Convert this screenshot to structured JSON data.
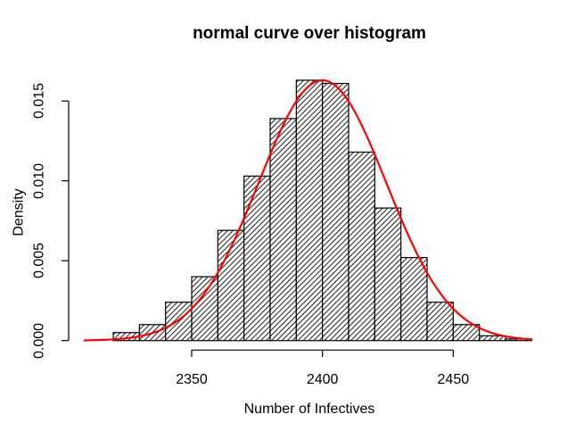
{
  "chart_data": {
    "type": "histogram",
    "title": "normal curve over histogram",
    "xlabel": "Number of Infectives",
    "ylabel": "Density",
    "bins": {
      "start": 2320,
      "width": 10,
      "densities": [
        0.0005,
        0.001,
        0.0024,
        0.004,
        0.0069,
        0.0103,
        0.0139,
        0.0163,
        0.0161,
        0.0118,
        0.0083,
        0.0052,
        0.0024,
        0.001,
        0.0003,
        0.0001
      ]
    },
    "x_ticks": {
      "values": [
        2350,
        2400,
        2450
      ],
      "labels": [
        "2350",
        "2400",
        "2450"
      ]
    },
    "y_ticks": {
      "values": [
        0,
        0.005,
        0.01,
        0.015
      ],
      "labels": [
        "0.000",
        "0.005",
        "0.010",
        "0.015"
      ]
    },
    "xlim": [
      2303,
      2487
    ],
    "ylim": [
      0,
      0.0168
    ],
    "grid": false,
    "legend_position": "none",
    "curve": {
      "shape": "normal",
      "mean": 2400,
      "sd": 24.4,
      "peak_density": 0.0163,
      "x_range": [
        2309,
        2481
      ],
      "color": "#FF0000",
      "line_width": 2.2
    },
    "style": {
      "background": "#FFFFFF",
      "bar_fill": "#FFFFFF",
      "hatch": true,
      "hatch_angle_deg": 45,
      "hatch_spacing_px": 4.2,
      "hatch_color": "#000000",
      "bar_border_color": "#000000",
      "axis_color": "#000000",
      "text_color": "#000000"
    }
  }
}
